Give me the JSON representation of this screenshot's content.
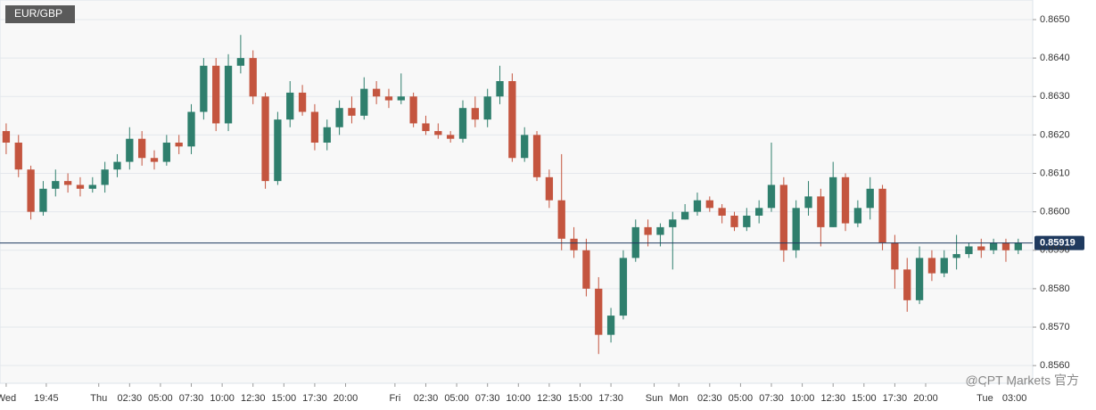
{
  "chart_data": {
    "type": "candlestick",
    "title": "EUR/GBP",
    "watermark": "@CPT Markets 官方",
    "x": [
      0.5,
      1.5,
      2.5,
      3.5,
      4.5,
      5.5,
      6.5,
      7.5,
      8.5,
      9.5,
      10.5,
      11.5,
      12.5,
      13.5,
      14.5,
      15.5,
      16.5,
      17.5,
      18.5,
      19.5,
      20.5,
      21.5,
      22.5,
      23.5,
      24.5,
      25.5,
      26.5,
      27.5,
      28.5,
      29.5,
      30.5,
      31.5,
      32.5,
      33.5,
      34.5,
      35.5,
      36.5,
      37.5,
      38.5,
      39.5,
      40.5,
      41.5,
      42.5,
      43.5,
      44.5,
      45.5,
      46.5,
      47.5,
      48.5,
      49.5,
      50.5,
      51.5,
      52.5,
      53.5,
      54.5,
      55.5,
      56.5,
      57.5,
      58.5,
      59.5,
      60.5,
      61.5,
      62.5,
      63.5,
      64.5,
      65.5,
      66.5,
      67.5,
      68.5,
      69.5,
      70.5,
      71.5,
      72.5,
      73.5,
      74.5,
      75.5,
      76.5,
      77.5,
      78.5,
      79.5,
      80.5,
      81.5,
      82.5
    ],
    "open": [
      0.8621,
      0.8618,
      0.8611,
      0.86,
      0.8606,
      0.8608,
      0.8607,
      0.8606,
      0.8607,
      0.8611,
      0.8613,
      0.8619,
      0.8614,
      0.8613,
      0.8618,
      0.8617,
      0.8626,
      0.8638,
      0.8623,
      0.8638,
      0.864,
      0.863,
      0.8608,
      0.8624,
      0.8631,
      0.8626,
      0.8618,
      0.8622,
      0.8627,
      0.8625,
      0.8632,
      0.863,
      0.8629,
      0.863,
      0.8623,
      0.8621,
      0.862,
      0.8619,
      0.8627,
      0.8624,
      0.863,
      0.8634,
      0.8614,
      0.862,
      0.8609,
      0.8603,
      0.8593,
      0.859,
      0.858,
      0.8568,
      0.8573,
      0.8588,
      0.8596,
      0.8594,
      0.8596,
      0.8598,
      0.86,
      0.8603,
      0.8601,
      0.8599,
      0.8596,
      0.8599,
      0.8601,
      0.8607,
      0.859,
      0.8601,
      0.8604,
      0.8596,
      0.8609,
      0.8597,
      0.8601,
      0.8606,
      0.8592,
      0.8585,
      0.8577,
      0.8588,
      0.8584,
      0.8588,
      0.8589,
      0.8591,
      0.859,
      0.8592,
      0.859
    ],
    "high": [
      0.8623,
      0.862,
      0.8612,
      0.8608,
      0.8611,
      0.861,
      0.8609,
      0.8609,
      0.8613,
      0.8615,
      0.8622,
      0.8621,
      0.8616,
      0.862,
      0.862,
      0.8628,
      0.864,
      0.864,
      0.8641,
      0.8646,
      0.8642,
      0.8631,
      0.8626,
      0.8634,
      0.8633,
      0.8628,
      0.8624,
      0.8629,
      0.863,
      0.8635,
      0.8634,
      0.8632,
      0.8636,
      0.8631,
      0.8625,
      0.8623,
      0.8621,
      0.8629,
      0.863,
      0.8632,
      0.8638,
      0.8636,
      0.8622,
      0.8621,
      0.8611,
      0.8615,
      0.8596,
      0.8593,
      0.8583,
      0.8575,
      0.859,
      0.8598,
      0.8598,
      0.8597,
      0.86,
      0.8602,
      0.8605,
      0.8604,
      0.8602,
      0.86,
      0.8601,
      0.8603,
      0.8618,
      0.8609,
      0.8603,
      0.8608,
      0.8606,
      0.8613,
      0.861,
      0.8603,
      0.8609,
      0.8607,
      0.8594,
      0.8588,
      0.8591,
      0.859,
      0.859,
      0.8594,
      0.8592,
      0.8593,
      0.8593,
      0.8593,
      0.8593
    ],
    "low": [
      0.8615,
      0.8609,
      0.8598,
      0.8599,
      0.8604,
      0.8605,
      0.8604,
      0.8605,
      0.8605,
      0.8609,
      0.8611,
      0.8612,
      0.8611,
      0.8612,
      0.8615,
      0.8615,
      0.8624,
      0.8621,
      0.8621,
      0.8636,
      0.8628,
      0.8606,
      0.8607,
      0.8622,
      0.8625,
      0.8616,
      0.8616,
      0.862,
      0.8623,
      0.8624,
      0.8628,
      0.8627,
      0.8628,
      0.8622,
      0.862,
      0.8619,
      0.8618,
      0.8618,
      0.8622,
      0.8622,
      0.8628,
      0.8613,
      0.8613,
      0.8608,
      0.8601,
      0.859,
      0.8588,
      0.8578,
      0.8563,
      0.8566,
      0.8572,
      0.8587,
      0.8591,
      0.8591,
      0.8585,
      0.8598,
      0.8599,
      0.86,
      0.8597,
      0.8595,
      0.8595,
      0.8597,
      0.86,
      0.8587,
      0.8588,
      0.8599,
      0.8591,
      0.8596,
      0.8595,
      0.8596,
      0.8598,
      0.859,
      0.858,
      0.8574,
      0.8576,
      0.8582,
      0.8583,
      0.8585,
      0.8588,
      0.8588,
      0.8589,
      0.8587,
      0.8589
    ],
    "close": [
      0.8618,
      0.8611,
      0.86,
      0.8606,
      0.8608,
      0.8607,
      0.8606,
      0.8607,
      0.8611,
      0.8613,
      0.8619,
      0.8614,
      0.8613,
      0.8618,
      0.8617,
      0.8626,
      0.8638,
      0.8623,
      0.8638,
      0.864,
      0.863,
      0.8608,
      0.8624,
      0.8631,
      0.8626,
      0.8618,
      0.8622,
      0.8627,
      0.8625,
      0.8632,
      0.863,
      0.8629,
      0.863,
      0.8623,
      0.8621,
      0.862,
      0.8619,
      0.8627,
      0.8624,
      0.863,
      0.8634,
      0.8614,
      0.862,
      0.8609,
      0.8603,
      0.8593,
      0.859,
      0.858,
      0.8568,
      0.8573,
      0.8588,
      0.8596,
      0.8594,
      0.8596,
      0.8598,
      0.86,
      0.8603,
      0.8601,
      0.8599,
      0.8596,
      0.8599,
      0.8601,
      0.8607,
      0.859,
      0.8601,
      0.8604,
      0.8596,
      0.8609,
      0.8597,
      0.8601,
      0.8606,
      0.8592,
      0.8585,
      0.8577,
      0.8588,
      0.8584,
      0.8588,
      0.8589,
      0.8591,
      0.859,
      0.8592,
      0.859,
      0.8592
    ],
    "up_color": "#2f7f6d",
    "down_color": "#c4553f",
    "last_price": 0.85919,
    "last_price_color": "#1f3a5f",
    "xlim": [
      0,
      83.67
    ],
    "xticks": [
      {
        "value": 0.5,
        "label": "Wed"
      },
      {
        "value": 3.75,
        "label": "19:45"
      },
      {
        "value": 8,
        "label": "Thu"
      },
      {
        "value": 10.5,
        "label": "02:30"
      },
      {
        "value": 13,
        "label": "05:00"
      },
      {
        "value": 15.5,
        "label": "07:30"
      },
      {
        "value": 18,
        "label": "10:00"
      },
      {
        "value": 20.5,
        "label": "12:30"
      },
      {
        "value": 23,
        "label": "15:00"
      },
      {
        "value": 25.5,
        "label": "17:30"
      },
      {
        "value": 28,
        "label": "20:00"
      },
      {
        "value": 32,
        "label": "Fri"
      },
      {
        "value": 34.5,
        "label": "02:30"
      },
      {
        "value": 37,
        "label": "05:00"
      },
      {
        "value": 39.5,
        "label": "07:30"
      },
      {
        "value": 42,
        "label": "10:00"
      },
      {
        "value": 44.5,
        "label": "12:30"
      },
      {
        "value": 47,
        "label": "15:00"
      },
      {
        "value": 49.5,
        "label": "17:30"
      },
      {
        "value": 53,
        "label": "Sun"
      },
      {
        "value": 55,
        "label": "Mon"
      },
      {
        "value": 57.5,
        "label": "02:30"
      },
      {
        "value": 60,
        "label": "05:00"
      },
      {
        "value": 62.5,
        "label": "07:30"
      },
      {
        "value": 65,
        "label": "10:00"
      },
      {
        "value": 67.5,
        "label": "12:30"
      },
      {
        "value": 70,
        "label": "15:00"
      },
      {
        "value": 72.5,
        "label": "17:30"
      },
      {
        "value": 75,
        "label": "20:00"
      },
      {
        "value": 79.8,
        "label": "Tue"
      },
      {
        "value": 82.2,
        "label": "03:00"
      }
    ],
    "ylim": [
      0.85554,
      0.86551
    ],
    "yticks": [
      {
        "value": 0.856,
        "label": "0.8560"
      },
      {
        "value": 0.857,
        "label": "0.8570"
      },
      {
        "value": 0.858,
        "label": "0.8580"
      },
      {
        "value": 0.859,
        "label": "0.8590"
      },
      {
        "value": 0.86,
        "label": "0.8600"
      },
      {
        "value": 0.861,
        "label": "0.8610"
      },
      {
        "value": 0.862,
        "label": "0.8620"
      },
      {
        "value": 0.863,
        "label": "0.8630"
      },
      {
        "value": 0.864,
        "label": "0.8640"
      },
      {
        "value": 0.865,
        "label": "0.8650"
      }
    ],
    "grid": true
  }
}
